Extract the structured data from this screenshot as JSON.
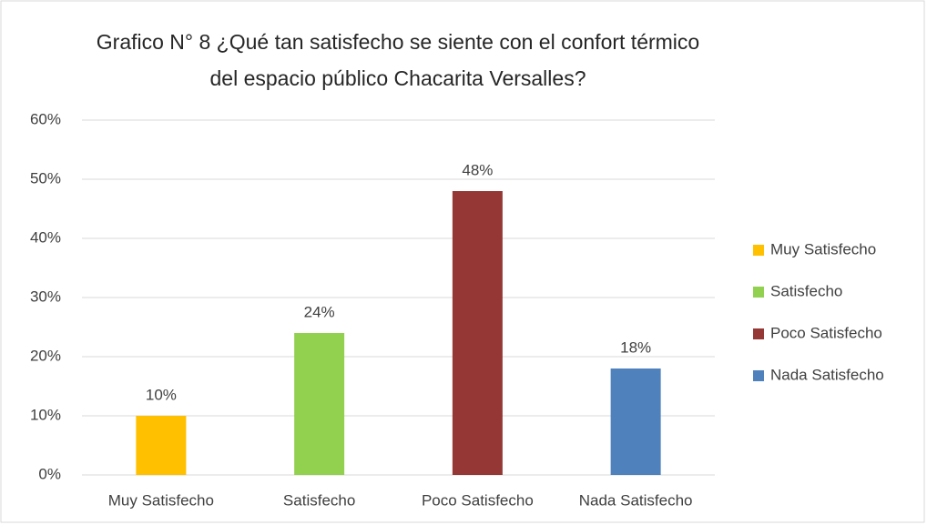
{
  "chart_data": {
    "type": "bar",
    "title": [
      "Grafico N° 8 ¿Qué tan satisfecho se siente con el confort térmico",
      "del espacio público Chacarita Versalles?"
    ],
    "categories": [
      "Muy Satisfecho",
      "Satisfecho",
      "Poco Satisfecho",
      "Nada Satisfecho"
    ],
    "values": [
      10,
      24,
      48,
      18
    ],
    "value_labels": [
      "10%",
      "24%",
      "48%",
      "18%"
    ],
    "colors": [
      "#ffc000",
      "#92d050",
      "#953735",
      "#4f81bd"
    ],
    "ylim": [
      0,
      60
    ],
    "yticks": [
      {
        "value": 0,
        "label": "0%"
      },
      {
        "value": 10,
        "label": "10%"
      },
      {
        "value": 20,
        "label": "20%"
      },
      {
        "value": 30,
        "label": "30%"
      },
      {
        "value": 40,
        "label": "40%"
      },
      {
        "value": 50,
        "label": "50%"
      },
      {
        "value": 60,
        "label": "60%"
      }
    ],
    "grid": true,
    "legend": "right"
  }
}
